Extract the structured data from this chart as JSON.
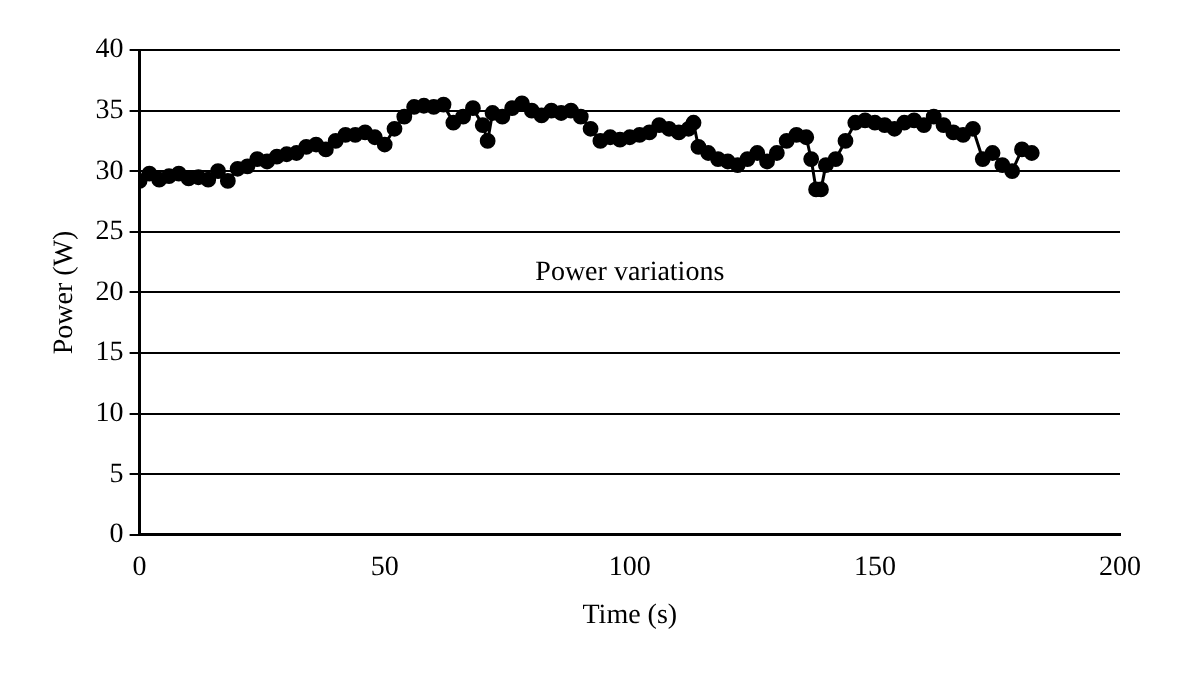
{
  "chart_data": {
    "type": "line",
    "xlabel": "Time (s)",
    "ylabel": "Power (W)",
    "annotations": [
      "Power variations"
    ],
    "xlim": [
      0,
      200
    ],
    "xticks": [
      0,
      50,
      100,
      150,
      200
    ],
    "ylim": [
      0,
      40
    ],
    "yticks": [
      0,
      5,
      10,
      15,
      20,
      25,
      30,
      35,
      40
    ],
    "grid": "y",
    "legend": false,
    "marker": "circle",
    "line_style": "solid",
    "series": [
      {
        "color": "#000000",
        "x": [
          0,
          2,
          4,
          6,
          8,
          10,
          12,
          14,
          16,
          18,
          20,
          22,
          24,
          26,
          28,
          30,
          32,
          34,
          36,
          38,
          40,
          42,
          44,
          46,
          48,
          50,
          52,
          54,
          56,
          58,
          60,
          62,
          64,
          66,
          68,
          70,
          71,
          72,
          74,
          76,
          78,
          80,
          82,
          84,
          86,
          88,
          90,
          92,
          94,
          96,
          98,
          100,
          102,
          104,
          106,
          108,
          110,
          112,
          113,
          114,
          116,
          118,
          120,
          122,
          124,
          126,
          128,
          130,
          132,
          134,
          136,
          137,
          138,
          139,
          140,
          142,
          144,
          146,
          148,
          150,
          152,
          154,
          156,
          158,
          160,
          162,
          164,
          166,
          168,
          170,
          172,
          174,
          176,
          178,
          180,
          182
        ],
        "values": [
          29.2,
          29.8,
          29.3,
          29.6,
          29.8,
          29.4,
          29.5,
          29.3,
          30,
          29.2,
          30.2,
          30.4,
          31,
          30.8,
          31.2,
          31.4,
          31.5,
          32,
          32.2,
          31.8,
          32.5,
          33,
          33,
          33.2,
          32.8,
          32.2,
          33.5,
          34.5,
          35.3,
          35.4,
          35.3,
          35.5,
          34,
          34.5,
          35.2,
          33.8,
          32.5,
          34.8,
          34.5,
          35.2,
          35.6,
          35,
          34.6,
          35,
          34.8,
          35,
          34.5,
          33.5,
          32.5,
          32.8,
          32.6,
          32.8,
          33,
          33.2,
          33.8,
          33.5,
          33.2,
          33.5,
          34,
          32,
          31.5,
          31,
          30.8,
          30.5,
          31,
          31.5,
          30.8,
          31.5,
          32.5,
          33,
          32.8,
          31,
          28.5,
          28.5,
          30.5,
          31,
          32.5,
          34,
          34.2,
          34,
          33.8,
          33.5,
          34,
          34.2,
          33.8,
          34.5,
          33.8,
          33.2,
          33,
          33.5,
          31,
          31.5,
          30.5,
          30,
          31.8,
          31.5
        ]
      }
    ]
  }
}
